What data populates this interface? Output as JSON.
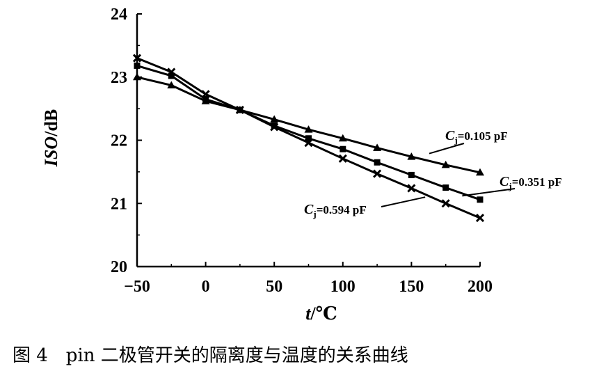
{
  "caption": "图 4　pin 二极管开关的隔离度与温度的关系曲线",
  "chart_data": {
    "type": "line",
    "title": "",
    "xlabel": "t/℃",
    "xlabel_parts": {
      "var": "t",
      "unit": "/℃"
    },
    "ylabel": "ISO/dB",
    "ylabel_parts": {
      "var": "ISO",
      "unit": "/dB"
    },
    "xlim": [
      -50,
      200
    ],
    "ylim": [
      20,
      24
    ],
    "x_ticks": [
      -50,
      0,
      50,
      100,
      150,
      200
    ],
    "x_tick_labels": [
      "−50",
      "0",
      "50",
      "100",
      "150",
      "200"
    ],
    "y_ticks": [
      20,
      21,
      22,
      23,
      24
    ],
    "y_tick_labels": [
      "20",
      "21",
      "22",
      "23",
      "24"
    ],
    "grid": false,
    "legend": "inline annotations",
    "x": [
      -50,
      -25,
      0,
      25,
      50,
      75,
      100,
      125,
      150,
      175,
      200
    ],
    "series": [
      {
        "label": "C",
        "label_sub": "j",
        "label_value": "=0.105 pF",
        "marker": "triangle",
        "values": [
          23.0,
          22.87,
          22.62,
          22.48,
          22.33,
          22.17,
          22.03,
          21.88,
          21.74,
          21.61,
          21.49
        ]
      },
      {
        "label": "C",
        "label_sub": "j",
        "label_value": "=0.351 pF",
        "marker": "square",
        "values": [
          23.18,
          23.02,
          22.65,
          22.48,
          22.23,
          22.03,
          21.86,
          21.65,
          21.45,
          21.25,
          21.06
        ]
      },
      {
        "label": "C",
        "label_sub": "j",
        "label_value": "=0.594 pF",
        "marker": "x",
        "values": [
          23.3,
          23.08,
          22.73,
          22.48,
          22.21,
          21.96,
          21.71,
          21.47,
          21.24,
          21.0,
          20.77
        ]
      }
    ]
  }
}
